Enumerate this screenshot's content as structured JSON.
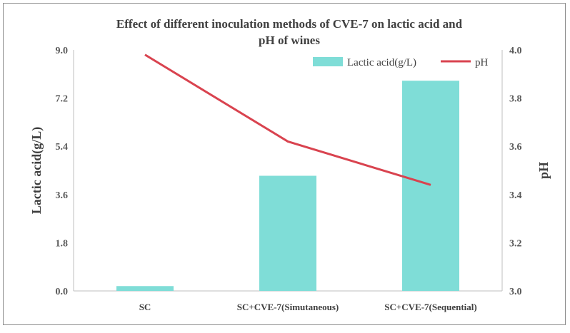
{
  "chart_data": {
    "type": "bar",
    "title": "Effect of different inoculation methods of CVE-7 on lactic acid and pH of wines",
    "title_lines": [
      "Effect of different inoculation methods of CVE-7 on lactic acid and",
      "pH of wines"
    ],
    "categories": [
      "SC",
      "SC+CVE-7(Simutaneous)",
      "SC+CVE-7(Sequential)"
    ],
    "series": [
      {
        "name": "Lactic acid(g/L)",
        "type": "bar",
        "axis": "left",
        "color": "#7fddd7",
        "values": [
          0.18,
          4.3,
          7.85
        ]
      },
      {
        "name": "pH",
        "type": "line",
        "axis": "right",
        "color": "#d9434f",
        "values": [
          3.98,
          3.62,
          3.44
        ]
      }
    ],
    "ylabel": "Lactic acid(g/L)",
    "y2label": "pH",
    "ylim": [
      0,
      9
    ],
    "y2lim": [
      3.0,
      4.0
    ],
    "yticks": [
      "0.0",
      "1.8",
      "3.6",
      "5.4",
      "7.2",
      "9.0"
    ],
    "y2ticks": [
      "3.0",
      "3.2",
      "3.4",
      "3.6",
      "3.8",
      "4.0"
    ],
    "legend_position": "top-right",
    "grid": false
  }
}
